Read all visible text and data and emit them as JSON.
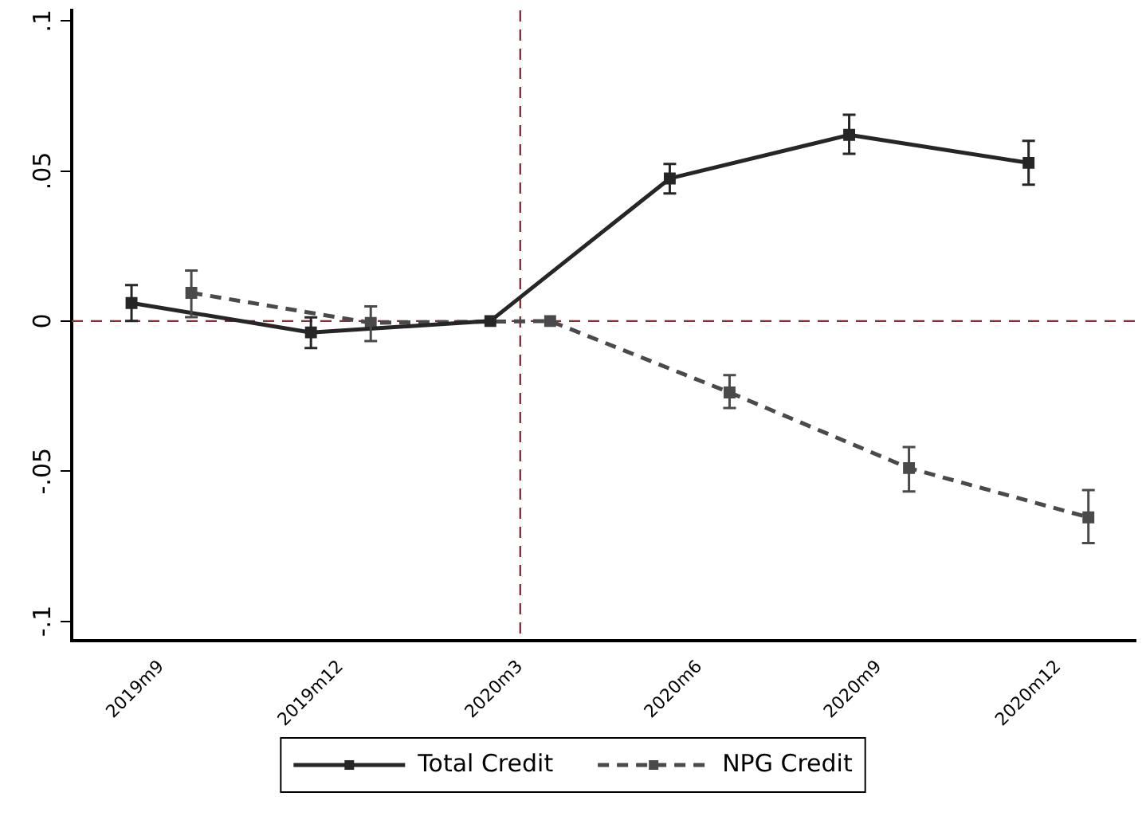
{
  "chart_data": {
    "type": "line",
    "categories": [
      "2019m9",
      "2019m12",
      "2020m3",
      "2020m6",
      "2020m9",
      "2020m12"
    ],
    "ylim": [
      -0.1065,
      0.1035
    ],
    "yticks": [
      {
        "value": -0.1,
        "label": "-.1"
      },
      {
        "value": -0.05,
        "label": "-.05"
      },
      0,
      {
        "value": 0.05,
        "label": ".05"
      },
      {
        "value": 0.1,
        "label": ".1"
      }
    ],
    "grid": false,
    "legend": "bottom",
    "marker": "square",
    "ref_lines": [
      {
        "axis": "x",
        "value": "2020m3",
        "color": "#8b2e3a",
        "line_style": "dashed"
      },
      {
        "axis": "y",
        "value": 0,
        "color": "#8b2e3a",
        "line_style": "dashed"
      }
    ],
    "series": [
      {
        "name": "Total Credit",
        "color": "#262626",
        "line_style": "solid",
        "values": [
          0.006,
          -0.0038,
          0,
          0.0475,
          0.062,
          0.0527
        ],
        "errors": [
          [
            0.0,
            0.012
          ],
          [
            -0.009,
            0.0012
          ],
          null,
          [
            0.0425,
            0.0523
          ],
          [
            0.0557,
            0.0687
          ],
          [
            0.0454,
            0.06
          ]
        ]
      },
      {
        "name": "NPG Credit",
        "color": "#4a4a4a",
        "line_style": "dashed",
        "values": [
          0.0094,
          -0.0006,
          0,
          -0.0238,
          -0.049,
          -0.0654
        ],
        "errors": [
          [
            0.0013,
            0.0168
          ],
          [
            -0.0067,
            0.0049
          ],
          null,
          [
            -0.029,
            -0.018
          ],
          [
            -0.0568,
            -0.042
          ],
          [
            -0.074,
            -0.0563
          ]
        ]
      }
    ]
  }
}
